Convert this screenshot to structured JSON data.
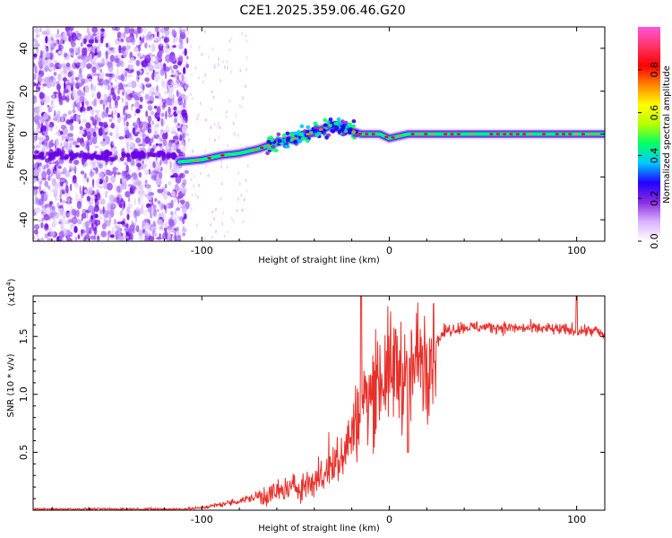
{
  "title": "C2E1.2025.359.06.46.G20",
  "chart_data": [
    {
      "type": "heatmap",
      "name": "spectrogram",
      "xlabel": "Height of straight line (km)",
      "ylabel": "Frequency (Hz)",
      "xlim": [
        -190,
        115
      ],
      "ylim": [
        -50,
        50
      ],
      "xticks": [
        -100,
        0,
        100
      ],
      "yticks": [
        -40,
        -20,
        0,
        20,
        40
      ],
      "colorbar": {
        "label": "Normalized spectral amplitude",
        "range": [
          0,
          1
        ],
        "ticks": [
          "0.0",
          "0.2",
          "0.4",
          "0.6",
          "0.8"
        ],
        "colors": [
          "#ffffff",
          "#d9b3ff",
          "#8a2be2",
          "#2200ff",
          "#00c8ff",
          "#00ff66",
          "#b6ff00",
          "#ffff00",
          "#ff8800",
          "#ff0000",
          "#ff3366",
          "#ff55dd"
        ]
      },
      "ridge": {
        "x": [
          -112,
          -100,
          -90,
          -80,
          -70,
          -60,
          -50,
          -40,
          -30,
          -22,
          -15,
          -10,
          -5,
          0,
          5,
          10,
          20,
          40,
          60,
          80,
          100,
          115
        ],
        "freq": [
          -13,
          -12,
          -10,
          -9,
          -7,
          -4,
          -2,
          1,
          4,
          2,
          0,
          0,
          0,
          -2,
          -1,
          0,
          0,
          0,
          0,
          0,
          0,
          0
        ]
      }
    },
    {
      "type": "line",
      "name": "snr",
      "xlabel": "Height of straight line (km)",
      "ylabel": "SNR (10 * v/v)",
      "multiplier": "(x10",
      "multiplier_exp": "4",
      "xlim": [
        -190,
        115
      ],
      "ylim": [
        0,
        1.85
      ],
      "xticks": [
        -100,
        0,
        100
      ],
      "yticks": [
        "0.5",
        "1.0",
        "1.5"
      ],
      "ytick_values": [
        0.5,
        1.0,
        1.5
      ],
      "line_color": "#e8302a",
      "trend": {
        "x": [
          -190,
          -110,
          -100,
          -90,
          -80,
          -70,
          -60,
          -50,
          -40,
          -35,
          -30,
          -25,
          -20,
          -15,
          -10,
          -5,
          0,
          5,
          10,
          15,
          20,
          25,
          30,
          40,
          50,
          60,
          70,
          80,
          90,
          100,
          110,
          115
        ],
        "y": [
          0.01,
          0.01,
          0.02,
          0.05,
          0.08,
          0.12,
          0.15,
          0.2,
          0.25,
          0.3,
          0.38,
          0.5,
          0.65,
          0.9,
          1.0,
          1.15,
          1.2,
          1.25,
          1.1,
          1.3,
          1.4,
          1.45,
          1.55,
          1.58,
          1.58,
          1.58,
          1.57,
          1.57,
          1.56,
          1.55,
          1.55,
          1.5
        ]
      }
    }
  ]
}
